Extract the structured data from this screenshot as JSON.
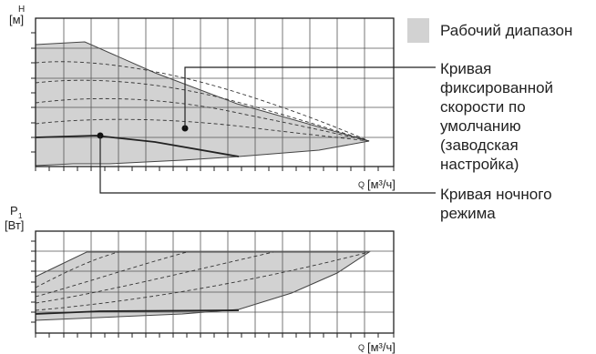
{
  "top_chart": {
    "y_axis_symbol": "H",
    "y_axis_unit": "[м]",
    "x_axis_symbol": "Q",
    "x_axis_unit": "[м³/ч]"
  },
  "bottom_chart": {
    "y_axis_symbol": "P",
    "y_axis_subscript": "1",
    "y_axis_unit": "[Вт]",
    "x_axis_symbol": "Q",
    "x_axis_unit": "[м³/ч]"
  },
  "legend": {
    "range_label": "Рабочий диапазон",
    "range_color": "#d2d2d2",
    "fixed_curve_lines": [
      "Кривая",
      "фиксированной",
      "скорости по",
      "умолчанию",
      "(заводская",
      "настройка)"
    ],
    "night_curve_lines": [
      "Кривая ночного",
      "режима"
    ]
  },
  "colors": {
    "grid": "#444444",
    "frame": "#222222",
    "fill": "#d2d2d2",
    "curve": "#222222"
  }
}
